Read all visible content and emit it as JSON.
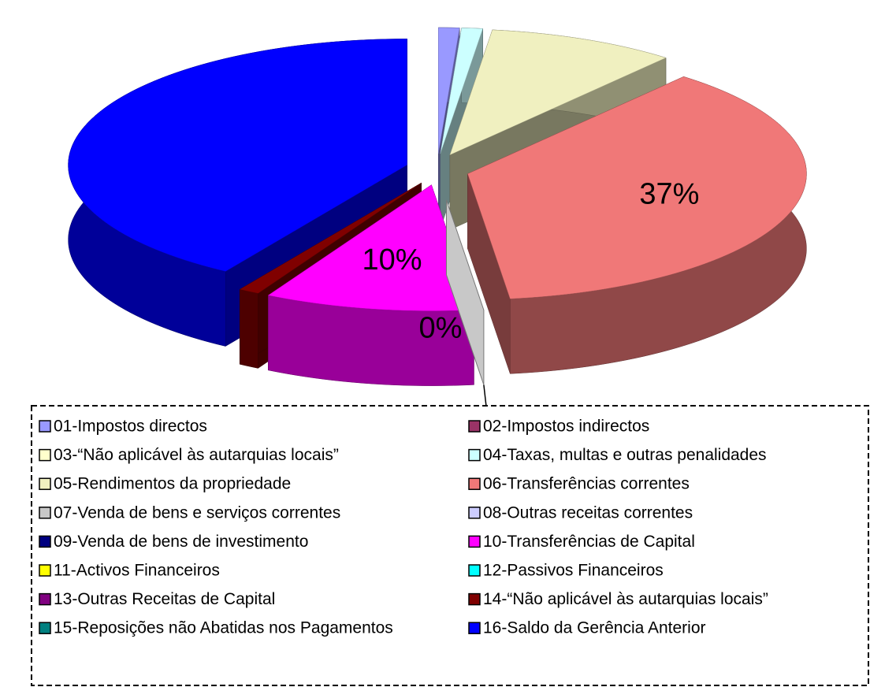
{
  "chart_data": {
    "type": "pie",
    "categories": [
      "01-Impostos directos",
      "02-Impostos indirectos",
      "03-“Não aplicável às autarquias locais”",
      "04-Taxas, multas e outras penalidades",
      "05-Rendimentos da propriedade",
      "06-Transferências correntes",
      "07-Venda de bens e serviços correntes",
      "08-Outras receitas correntes",
      "09-Venda de bens de investimento",
      "10-Transferências de Capital",
      "11-Activos Financeiros",
      "12-Passivos Financeiros",
      "13-Outras Receitas de Capital",
      "14-“Não aplicável às autarquias locais”",
      "15-Reposições não Abatidas nos Pagamentos",
      "16-Saldo da Gerência Anterior"
    ],
    "values": [
      1,
      0,
      0,
      1,
      9,
      37,
      0,
      0,
      0,
      10,
      0,
      0,
      0,
      1,
      0,
      41
    ],
    "value_labels": [
      null,
      null,
      null,
      null,
      null,
      "37%",
      "0%",
      null,
      null,
      "10%",
      null,
      null,
      null,
      null,
      null,
      null
    ],
    "colors": [
      "#9999ff",
      "#993366",
      "#ffffcc",
      "#ccffff",
      "#f0f0c0",
      "#f07878",
      "#c8c8c8",
      "#ccccff",
      "#000080",
      "#ff00ff",
      "#ffff00",
      "#00ffff",
      "#800080",
      "#800000",
      "#008080",
      "#0000ff"
    ],
    "legend": "bottom"
  }
}
